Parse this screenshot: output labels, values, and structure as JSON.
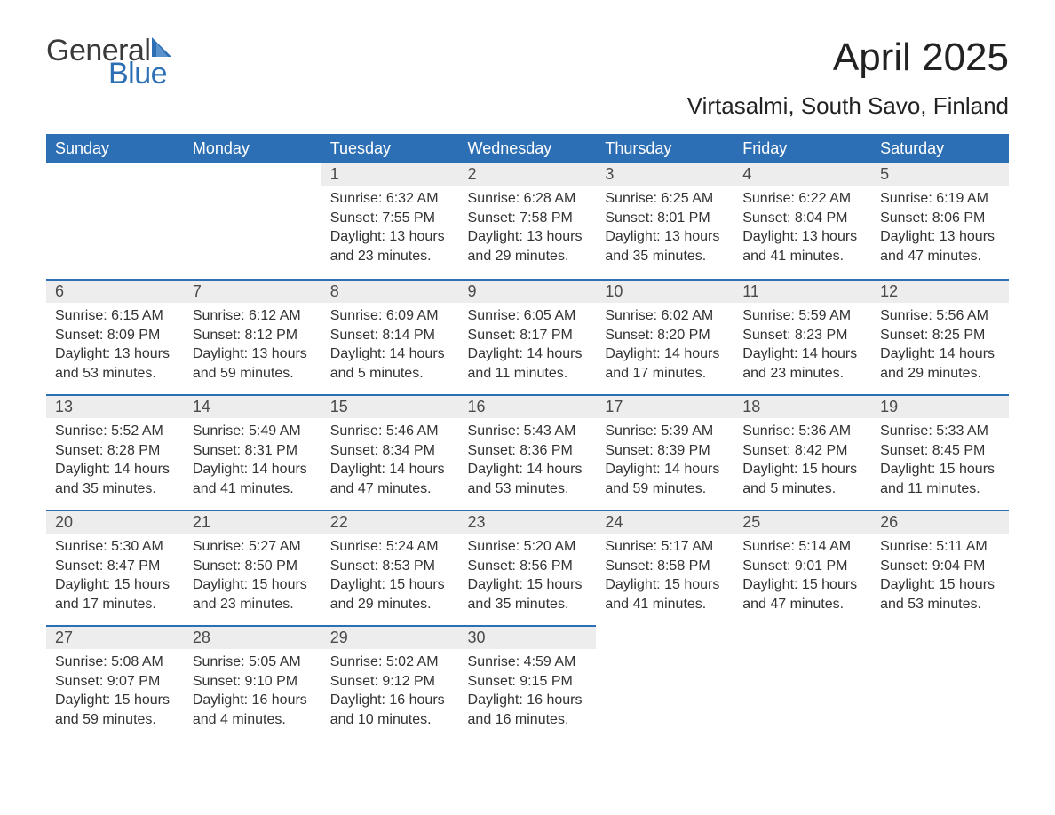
{
  "logo": {
    "text1": "General",
    "text2": "Blue",
    "sail_color": "#2d6fb5"
  },
  "title": "April 2025",
  "subtitle": "Virtasalmi, South Savo, Finland",
  "header_bg": "#2d6fb5",
  "header_fg": "#ffffff",
  "daynum_bg": "#ededed",
  "row_border_color": "#2d6fb5",
  "text_color": "#333333",
  "font_family": "Segoe UI, Arial, sans-serif",
  "title_fontsize": 44,
  "subtitle_fontsize": 26,
  "header_fontsize": 18,
  "body_fontsize": 16,
  "columns": [
    "Sunday",
    "Monday",
    "Tuesday",
    "Wednesday",
    "Thursday",
    "Friday",
    "Saturday"
  ],
  "labels": {
    "sunrise": "Sunrise: ",
    "sunset": "Sunset: ",
    "daylight": "Daylight: "
  },
  "weeks": [
    [
      null,
      null,
      {
        "day": "1",
        "sunrise": "6:32 AM",
        "sunset": "7:55 PM",
        "daylight": "13 hours and 23 minutes."
      },
      {
        "day": "2",
        "sunrise": "6:28 AM",
        "sunset": "7:58 PM",
        "daylight": "13 hours and 29 minutes."
      },
      {
        "day": "3",
        "sunrise": "6:25 AM",
        "sunset": "8:01 PM",
        "daylight": "13 hours and 35 minutes."
      },
      {
        "day": "4",
        "sunrise": "6:22 AM",
        "sunset": "8:04 PM",
        "daylight": "13 hours and 41 minutes."
      },
      {
        "day": "5",
        "sunrise": "6:19 AM",
        "sunset": "8:06 PM",
        "daylight": "13 hours and 47 minutes."
      }
    ],
    [
      {
        "day": "6",
        "sunrise": "6:15 AM",
        "sunset": "8:09 PM",
        "daylight": "13 hours and 53 minutes."
      },
      {
        "day": "7",
        "sunrise": "6:12 AM",
        "sunset": "8:12 PM",
        "daylight": "13 hours and 59 minutes."
      },
      {
        "day": "8",
        "sunrise": "6:09 AM",
        "sunset": "8:14 PM",
        "daylight": "14 hours and 5 minutes."
      },
      {
        "day": "9",
        "sunrise": "6:05 AM",
        "sunset": "8:17 PM",
        "daylight": "14 hours and 11 minutes."
      },
      {
        "day": "10",
        "sunrise": "6:02 AM",
        "sunset": "8:20 PM",
        "daylight": "14 hours and 17 minutes."
      },
      {
        "day": "11",
        "sunrise": "5:59 AM",
        "sunset": "8:23 PM",
        "daylight": "14 hours and 23 minutes."
      },
      {
        "day": "12",
        "sunrise": "5:56 AM",
        "sunset": "8:25 PM",
        "daylight": "14 hours and 29 minutes."
      }
    ],
    [
      {
        "day": "13",
        "sunrise": "5:52 AM",
        "sunset": "8:28 PM",
        "daylight": "14 hours and 35 minutes."
      },
      {
        "day": "14",
        "sunrise": "5:49 AM",
        "sunset": "8:31 PM",
        "daylight": "14 hours and 41 minutes."
      },
      {
        "day": "15",
        "sunrise": "5:46 AM",
        "sunset": "8:34 PM",
        "daylight": "14 hours and 47 minutes."
      },
      {
        "day": "16",
        "sunrise": "5:43 AM",
        "sunset": "8:36 PM",
        "daylight": "14 hours and 53 minutes."
      },
      {
        "day": "17",
        "sunrise": "5:39 AM",
        "sunset": "8:39 PM",
        "daylight": "14 hours and 59 minutes."
      },
      {
        "day": "18",
        "sunrise": "5:36 AM",
        "sunset": "8:42 PM",
        "daylight": "15 hours and 5 minutes."
      },
      {
        "day": "19",
        "sunrise": "5:33 AM",
        "sunset": "8:45 PM",
        "daylight": "15 hours and 11 minutes."
      }
    ],
    [
      {
        "day": "20",
        "sunrise": "5:30 AM",
        "sunset": "8:47 PM",
        "daylight": "15 hours and 17 minutes."
      },
      {
        "day": "21",
        "sunrise": "5:27 AM",
        "sunset": "8:50 PM",
        "daylight": "15 hours and 23 minutes."
      },
      {
        "day": "22",
        "sunrise": "5:24 AM",
        "sunset": "8:53 PM",
        "daylight": "15 hours and 29 minutes."
      },
      {
        "day": "23",
        "sunrise": "5:20 AM",
        "sunset": "8:56 PM",
        "daylight": "15 hours and 35 minutes."
      },
      {
        "day": "24",
        "sunrise": "5:17 AM",
        "sunset": "8:58 PM",
        "daylight": "15 hours and 41 minutes."
      },
      {
        "day": "25",
        "sunrise": "5:14 AM",
        "sunset": "9:01 PM",
        "daylight": "15 hours and 47 minutes."
      },
      {
        "day": "26",
        "sunrise": "5:11 AM",
        "sunset": "9:04 PM",
        "daylight": "15 hours and 53 minutes."
      }
    ],
    [
      {
        "day": "27",
        "sunrise": "5:08 AM",
        "sunset": "9:07 PM",
        "daylight": "15 hours and 59 minutes."
      },
      {
        "day": "28",
        "sunrise": "5:05 AM",
        "sunset": "9:10 PM",
        "daylight": "16 hours and 4 minutes."
      },
      {
        "day": "29",
        "sunrise": "5:02 AM",
        "sunset": "9:12 PM",
        "daylight": "16 hours and 10 minutes."
      },
      {
        "day": "30",
        "sunrise": "4:59 AM",
        "sunset": "9:15 PM",
        "daylight": "16 hours and 16 minutes."
      },
      null,
      null,
      null
    ]
  ]
}
